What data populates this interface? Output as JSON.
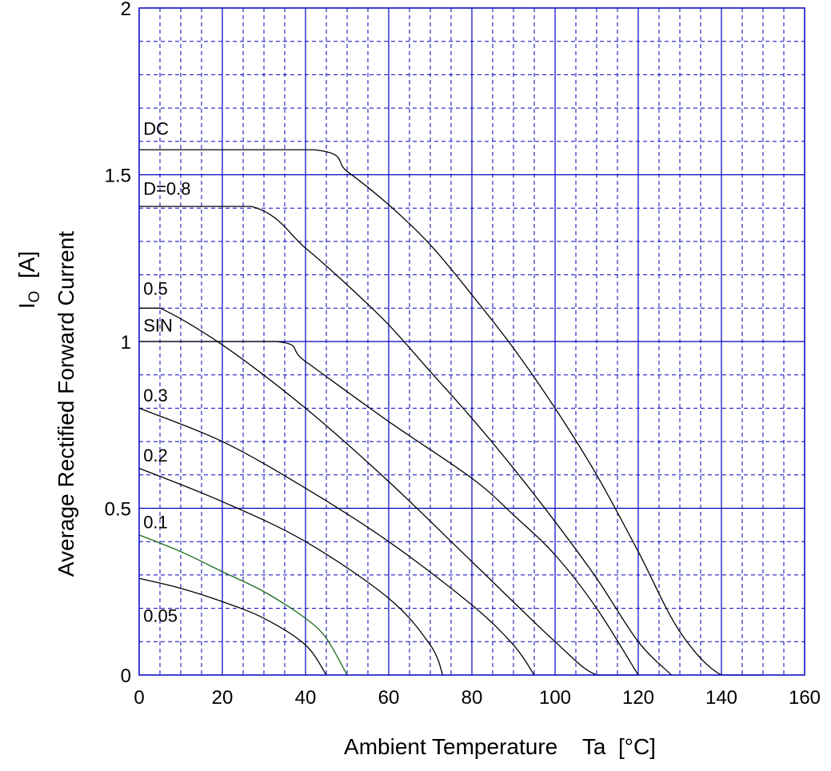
{
  "chart_data": {
    "type": "line",
    "xlabel": "Ambient Temperature    Ta  [°C]",
    "ylabel_line1_main": "I",
    "ylabel_line1_sub": "O",
    "ylabel_line1_unit": "  [A]",
    "ylabel_line2": "Average Rectified Forward Current",
    "xlim": [
      0,
      160
    ],
    "ylim": [
      0,
      2
    ],
    "x_ticks": [
      "0",
      "20",
      "40",
      "60",
      "80",
      "100",
      "120",
      "140",
      "160"
    ],
    "y_ticks": [
      "0",
      "0.5",
      "1",
      "1.5",
      "2"
    ],
    "grid": true,
    "grid_color": "#0000c0",
    "line_color": "#000000",
    "series": [
      {
        "name": "DC",
        "label_at": [
          1,
          1.62
        ],
        "x": [
          0,
          42,
          50,
          60,
          70,
          80,
          90,
          100,
          110,
          120,
          130,
          140,
          150
        ],
        "y": [
          1.575,
          1.575,
          1.51,
          1.41,
          1.29,
          1.14,
          0.98,
          0.8,
          0.6,
          0.37,
          0.13,
          -0.05,
          0
        ],
        "color": "#000000"
      },
      {
        "name": "D=0.8",
        "label_at": [
          1,
          1.44
        ],
        "x": [
          0,
          27,
          40,
          50,
          60,
          70,
          80,
          90,
          100,
          110,
          120,
          128
        ],
        "y": [
          1.405,
          1.405,
          1.28,
          1.17,
          1.05,
          0.91,
          0.77,
          0.62,
          0.46,
          0.29,
          0.1,
          0
        ],
        "color": "#000000"
      },
      {
        "name": "0.5",
        "label_at": [
          1,
          1.14
        ],
        "x": [
          0,
          5,
          20,
          40,
          60,
          80,
          100,
          110,
          120
        ],
        "y": [
          1.1,
          1.1,
          0.99,
          0.8,
          0.58,
          0.34,
          0.1,
          -0.02,
          0
        ],
        "color": "#000000"
      },
      {
        "name": "SIN",
        "label_at": [
          1,
          1.03
        ],
        "x": [
          0,
          33,
          40,
          60,
          80,
          90,
          100,
          110,
          120
        ],
        "y": [
          1.0,
          1.0,
          0.94,
          0.76,
          0.59,
          0.48,
          0.36,
          0.2,
          0
        ],
        "color": "#000000"
      },
      {
        "name": "0.3",
        "label_at": [
          1,
          0.82
        ],
        "x": [
          0,
          20,
          40,
          60,
          80,
          90,
          95
        ],
        "y": [
          0.8,
          0.7,
          0.56,
          0.4,
          0.21,
          0.09,
          0
        ],
        "color": "#000000"
      },
      {
        "name": "0.2",
        "label_at": [
          1,
          0.64
        ],
        "x": [
          0,
          20,
          40,
          60,
          70,
          73
        ],
        "y": [
          0.62,
          0.52,
          0.4,
          0.23,
          0.09,
          0
        ],
        "color": "#000000"
      },
      {
        "name": "0.1",
        "label_at": [
          1,
          0.44
        ],
        "x": [
          0,
          10,
          20,
          30,
          40,
          45,
          50
        ],
        "y": [
          0.42,
          0.37,
          0.31,
          0.25,
          0.17,
          0.11,
          0
        ],
        "color": "#1a6a1a"
      },
      {
        "name": "0.05",
        "label_at": [
          1,
          0.16
        ],
        "x": [
          0,
          10,
          20,
          30,
          40,
          45
        ],
        "y": [
          0.29,
          0.26,
          0.22,
          0.17,
          0.09,
          0
        ],
        "color": "#000000"
      }
    ]
  }
}
